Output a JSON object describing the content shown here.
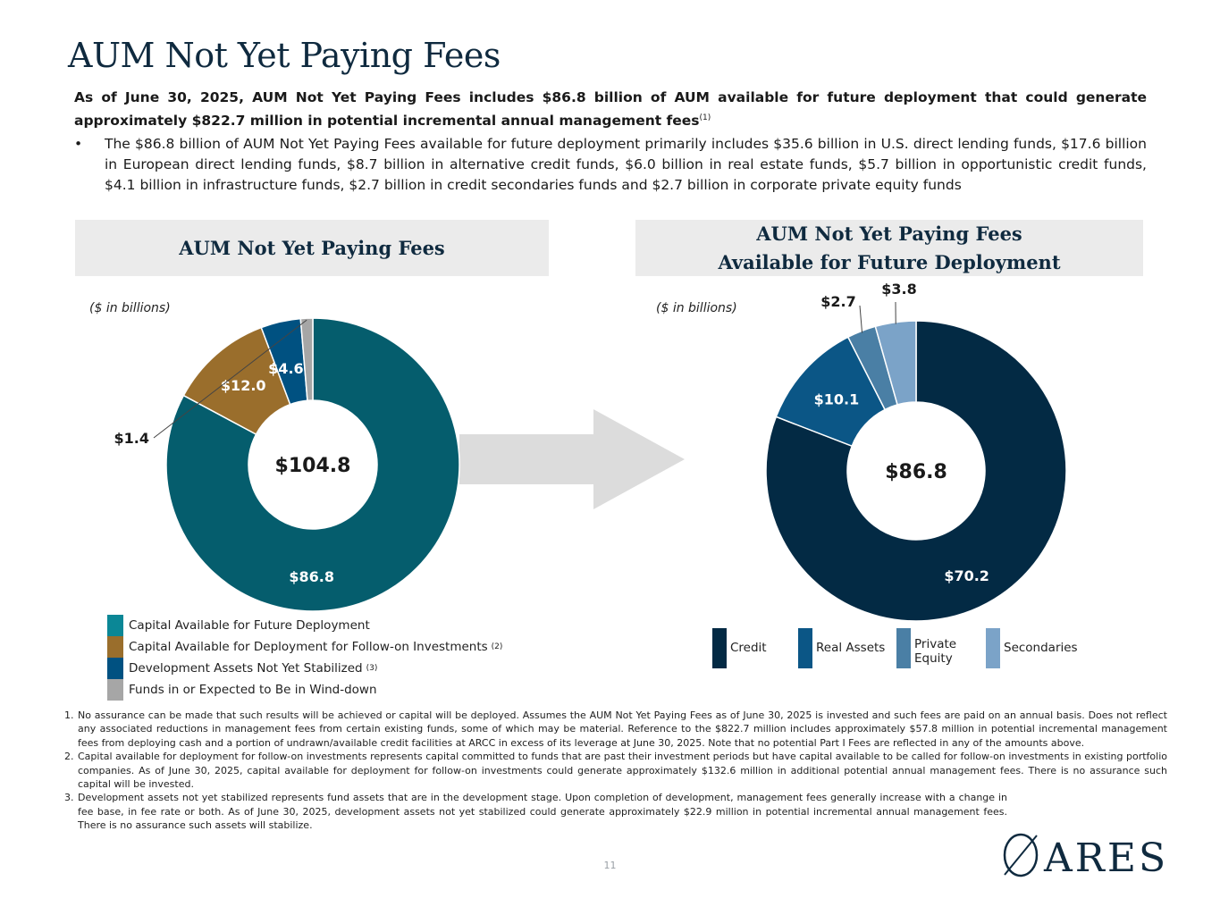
{
  "page": {
    "title": "AUM Not Yet Paying Fees",
    "lead_text": "As of June 30, 2025, AUM Not Yet Paying Fees includes $86.8 billion of AUM available for future deployment that could generate approximately $822.7 million in potential incremental annual management fees",
    "lead_footnote": "(1)",
    "bullet_text": "The $86.8 billion of AUM Not Yet Paying Fees available for future deployment primarily includes $35.6 billion in U.S. direct lending funds, $17.6 billion in European direct lending funds, $8.7 billion in alternative credit funds, $6.0 billion in real estate funds, $5.7 billion in opportunistic credit funds, $4.1 billion in infrastructure funds, $2.7 billion in credit secondaries funds and $2.7 billion in corporate private equity funds",
    "bullet_symbol": "•",
    "page_number": "11",
    "logo_text": "ARES"
  },
  "left_panel": {
    "title": "AUM Not Yet Paying Fees",
    "units": "($ in billions)"
  },
  "right_panel": {
    "title_line1": "AUM Not Yet Paying Fees",
    "title_line2": "Available for Future Deployment",
    "units": "($ in billions)"
  },
  "chart_data": [
    {
      "type": "pie",
      "donut": true,
      "title": "AUM Not Yet Paying Fees",
      "units": "$ in billions",
      "center_label": "$104.8",
      "categories": [
        "Capital Available for Future Deployment",
        "Capital Available for Deployment for Follow-on Investments",
        "Development Assets Not Yet Stabilized",
        "Funds in or Expected to Be in Wind-down"
      ],
      "values": [
        86.8,
        12.0,
        4.6,
        1.4
      ],
      "labels": [
        "$86.8",
        "$12.0",
        "$4.6",
        "$1.4"
      ],
      "legend_footnotes": [
        "",
        "(2)",
        "(3)",
        ""
      ],
      "colors": [
        "#055d6d",
        "#9a6e2c",
        "#005181",
        "#a6a6a6"
      ],
      "legend_colors": [
        "#0b8796",
        "#9a6e2c",
        "#005181",
        "#a6a6a6"
      ]
    },
    {
      "type": "pie",
      "donut": true,
      "title": "AUM Not Yet Paying Fees Available for Future Deployment",
      "units": "$ in billions",
      "center_label": "$86.8",
      "categories": [
        "Credit",
        "Real Assets",
        "Private Equity",
        "Secondaries"
      ],
      "values": [
        70.2,
        10.1,
        2.7,
        3.8
      ],
      "labels": [
        "$70.2",
        "$10.1",
        "$2.7",
        "$3.8"
      ],
      "colors": [
        "#032a44",
        "#0b5686",
        "#4a7fa5",
        "#7ba3c8"
      ]
    }
  ],
  "footnotes": [
    {
      "num": "1.",
      "text": "No assurance can be made that such results will be achieved or capital will be deployed. Assumes the AUM Not Yet Paying Fees as of June 30, 2025 is invested and such fees are paid on an annual basis. Does not reflect any associated reductions in management fees from certain existing funds, some of which may be material. Reference to the $822.7 million includes approximately $57.8 million in potential incremental management fees from deploying cash and a portion of undrawn/available credit facilities at ARCC in excess of its leverage at June 30, 2025. Note that no potential Part I Fees are reflected in any of the amounts above."
    },
    {
      "num": "2.",
      "text": "Capital available for deployment for follow-on investments represents capital committed to funds that are past their investment periods but have capital available to be called for follow-on investments in existing portfolio companies. As of June 30, 2025, capital available for deployment for follow-on investments could generate approximately $132.6 million in additional potential annual management fees. There is no assurance such capital will be invested."
    },
    {
      "num": "3.",
      "text": "Development assets not yet stabilized represents fund assets that are in the development stage. Upon completion of development, management fees generally increase with a change in fee base, in fee rate or both. As of June 30, 2025, development assets not yet stabilized could generate approximately $22.9 million in potential incremental annual management fees. There is no assurance such assets will stabilize."
    }
  ]
}
